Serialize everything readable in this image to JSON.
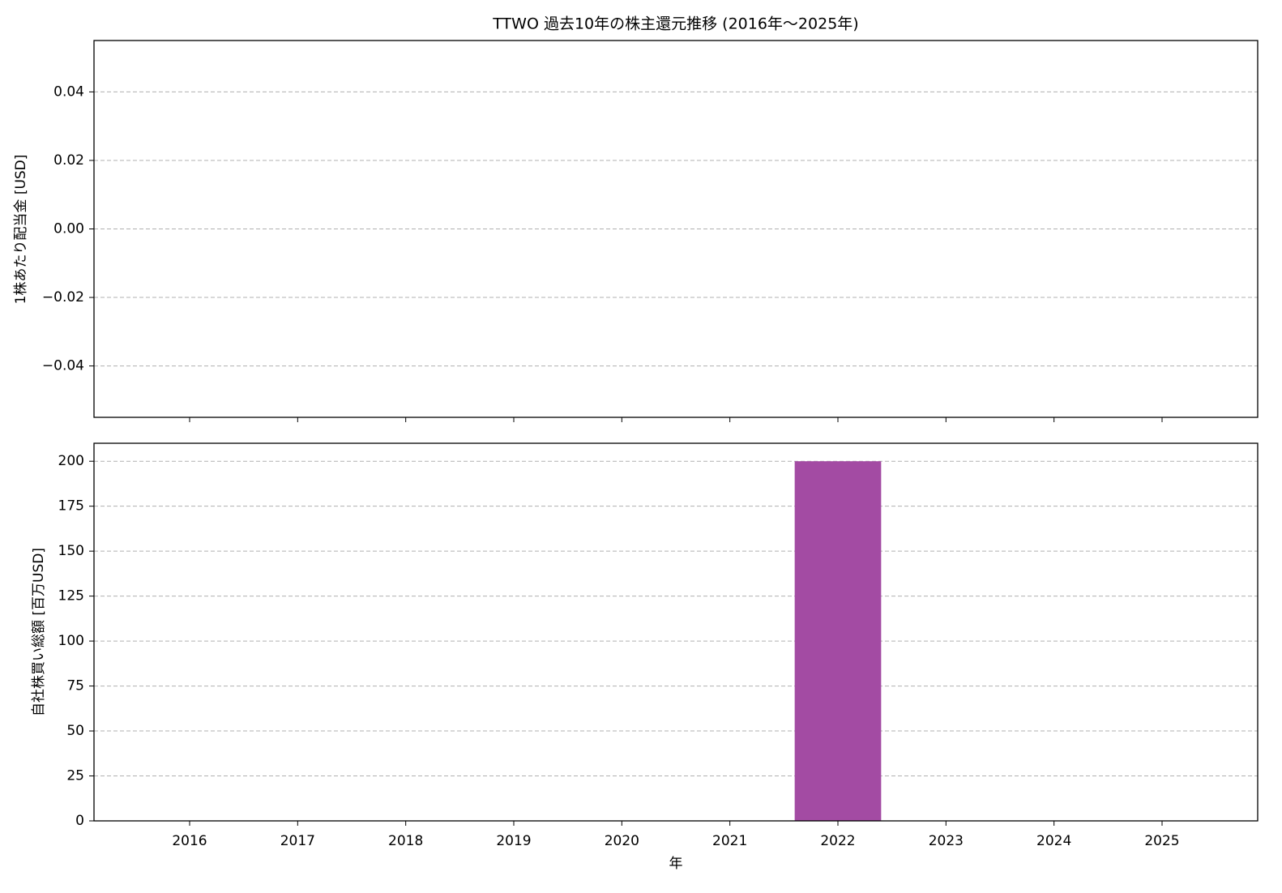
{
  "chart_data": [
    {
      "type": "bar",
      "title": "TTWO 過去10年の株主還元推移 (2016年～2025年)",
      "ylabel": "1株あたり配当金 [USD]",
      "categories": [
        "2016",
        "2017",
        "2018",
        "2019",
        "2020",
        "2021",
        "2022",
        "2023",
        "2024",
        "2025"
      ],
      "values": [
        0,
        0,
        0,
        0,
        0,
        0,
        0,
        0,
        0,
        0
      ],
      "color": "#1f77b4",
      "ylim": [
        -0.055,
        0.055
      ],
      "yticks": [
        {
          "value": -0.04,
          "label": "−0.04"
        },
        {
          "value": -0.02,
          "label": "−0.02"
        },
        {
          "value": 0,
          "label": "0.00"
        },
        0.02,
        0.04
      ],
      "grid": true
    },
    {
      "type": "bar",
      "ylabel": "自社株買い総額 [百万USD]",
      "xlabel": "年",
      "categories": [
        "2016",
        "2017",
        "2018",
        "2019",
        "2020",
        "2021",
        "2022",
        "2023",
        "2024",
        "2025"
      ],
      "values": [
        0,
        0,
        0,
        0,
        0,
        0,
        200,
        0,
        0,
        0
      ],
      "color": "#a34ba3",
      "ylim": [
        0,
        210
      ],
      "yticks": [
        0,
        25,
        50,
        75,
        100,
        125,
        150,
        175,
        200
      ],
      "grid": true
    }
  ]
}
